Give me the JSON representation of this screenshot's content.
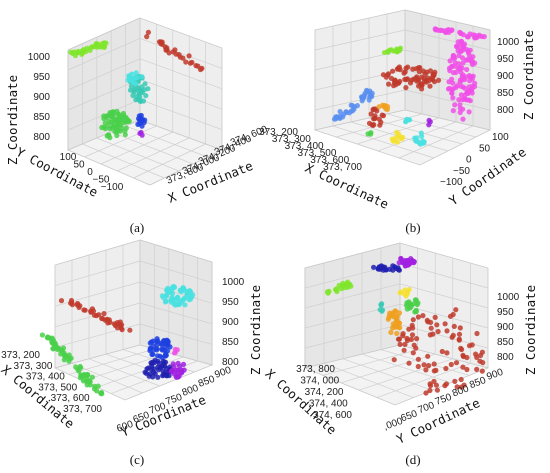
{
  "colors": {
    "red": "#c0392b",
    "green": "#6cd02c",
    "lime": "#7fe52a",
    "teal": "#38c9b5",
    "cyan": "#49e0e0",
    "blue": "#1f3fe0",
    "navy": "#2020b0",
    "magenta": "#f050e8",
    "purple": "#a020e0",
    "orange": "#f0a020",
    "yellow": "#f5e030",
    "lightblue": "#5a8ff0",
    "brightgreen": "#4ad04a"
  },
  "chart_data": [
    {
      "panel": "a",
      "type": "scatter",
      "caption": "(a)",
      "xlabel": "X Coordinate",
      "ylabel": "Y Coordinate",
      "zlabel": "Z Coordinate",
      "x_ticks": [
        "373, 800",
        "374, 000",
        "374, 200",
        "374, 400",
        "374, 600"
      ],
      "y_ticks": [
        "100",
        "50",
        "0",
        "−50",
        "−100"
      ],
      "z_ticks": [
        "1000",
        "950",
        "900",
        "850",
        "800"
      ]
    },
    {
      "panel": "b",
      "type": "scatter",
      "caption": "(b)",
      "xlabel": "X Coordinate",
      "ylabel": "Y Coordinate",
      "zlabel": "Z Coordinate",
      "x_ticks": [
        "373, 200",
        "373, 300",
        "373, 400",
        "373, 500",
        "373, 600",
        "373, 700"
      ],
      "y_ticks": [
        "−100",
        "−50",
        "0",
        "50",
        "100"
      ],
      "z_ticks": [
        "1000",
        "950",
        "900",
        "850",
        "800"
      ]
    },
    {
      "panel": "c",
      "type": "scatter",
      "caption": "(c)",
      "xlabel": "X Coordinate",
      "ylabel": "Y Coordinate",
      "zlabel": "Z Coordinate",
      "x_ticks": [
        "373, 200",
        "373, 300",
        "373, 400",
        "373, 500",
        "373, 600",
        "373, 700"
      ],
      "y_ticks": [
        "600",
        "650",
        "700",
        "750",
        "800",
        "850",
        "900"
      ],
      "z_ticks": [
        "1000",
        "950",
        "900",
        "850",
        "800"
      ]
    },
    {
      "panel": "d",
      "type": "scatter",
      "caption": "(d)",
      "xlabel": "X Coordinate",
      "ylabel": "Y Coordinate",
      "zlabel": "Z Coordinate",
      "x_ticks": [
        "373, 800",
        "374, 000",
        "374, 200",
        "374, 400",
        "374, 600"
      ],
      "y_ticks": [
        ",000",
        "650",
        "700",
        "750",
        "800",
        "850",
        "900"
      ],
      "z_ticks": [
        "1000",
        "950",
        "900",
        "850",
        "800"
      ]
    }
  ]
}
